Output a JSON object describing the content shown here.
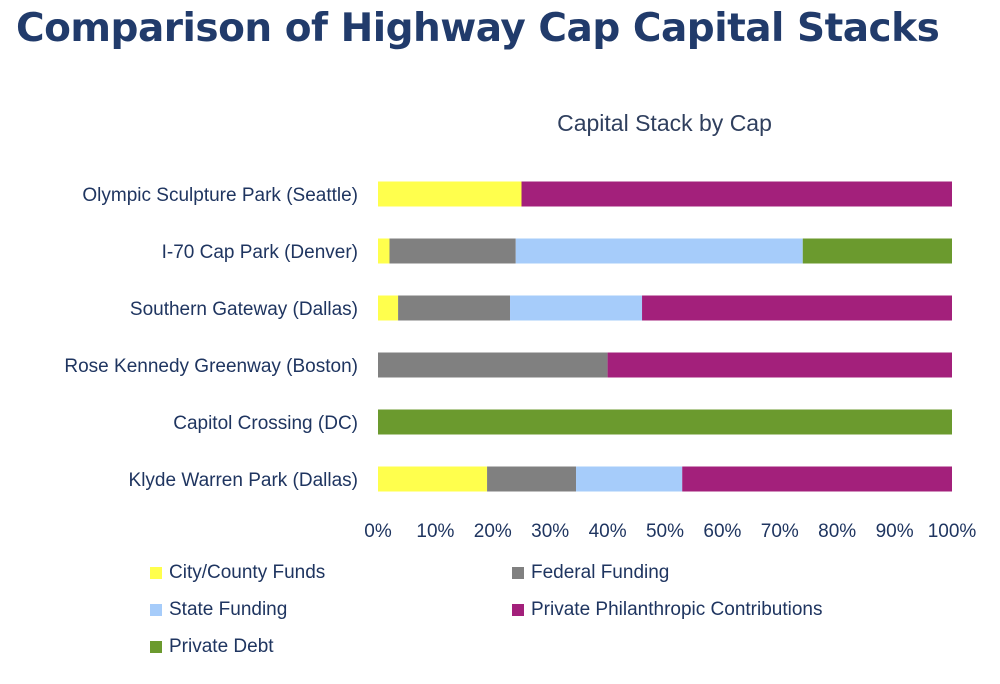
{
  "page": {
    "title": "Comparison of Highway Cap Capital Stacks"
  },
  "chart_data": {
    "type": "bar",
    "orientation": "horizontal",
    "stacked": "percent",
    "title": "Capital Stack by Cap",
    "categories": [
      "Olympic Sculpture Park (Seattle)",
      "I-70 Cap Park (Denver)",
      "Southern Gateway (Dallas)",
      "Rose Kennedy Greenway (Boston)",
      "Capitol Crossing (DC)",
      "Klyde Warren Park (Dallas)"
    ],
    "series": [
      {
        "name": "City/County Funds",
        "color": "#ffff4d",
        "values": [
          25,
          2,
          3.5,
          0,
          0,
          19
        ]
      },
      {
        "name": "Federal Funding",
        "color": "#808080",
        "values": [
          0,
          22,
          19.5,
          40,
          0,
          15.5
        ]
      },
      {
        "name": "State Funding",
        "color": "#a6ccfa",
        "values": [
          0,
          50,
          23,
          0,
          0,
          18.5
        ]
      },
      {
        "name": "Private Philanthropic Contributions",
        "color": "#a3207b",
        "values": [
          75,
          0,
          54,
          60,
          0,
          47
        ]
      },
      {
        "name": "Private Debt",
        "color": "#6b9a2e",
        "values": [
          0,
          26,
          0,
          0,
          100,
          0
        ]
      }
    ],
    "x_ticks": [
      "0%",
      "10%",
      "20%",
      "30%",
      "40%",
      "50%",
      "60%",
      "70%",
      "80%",
      "90%",
      "100%"
    ],
    "xlim": [
      0,
      100
    ],
    "grid": false,
    "legend_position": "bottom"
  }
}
